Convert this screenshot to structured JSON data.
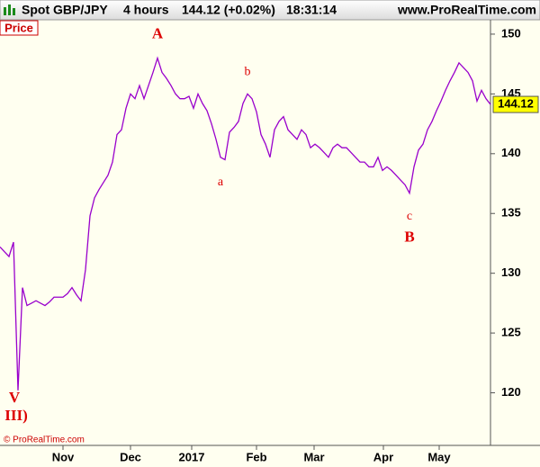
{
  "header": {
    "instrument": "Spot GBP/JPY",
    "timeframe": "4 hours",
    "quote": "144.12 (+0.02%)",
    "time": "18:31:14",
    "site": "www.ProRealTime.com"
  },
  "chart_data": {
    "type": "line",
    "label": "Price",
    "copyright": "© ProRealTime.com",
    "last_price": 144.12,
    "series": [
      {
        "name": "Price",
        "color": "#9900cc",
        "values": [
          132.2,
          131.8,
          131.4,
          132.6,
          120.2,
          128.8,
          127.3,
          127.5,
          127.7,
          127.5,
          127.3,
          127.6,
          128.0,
          128.0,
          128.0,
          128.3,
          128.8,
          128.2,
          127.7,
          130.3,
          134.8,
          136.3,
          137.0,
          137.6,
          138.2,
          139.3,
          141.6,
          142.0,
          143.8,
          145.0,
          144.6,
          145.7,
          144.6,
          145.7,
          146.8,
          148.0,
          146.8,
          146.3,
          145.7,
          145.0,
          144.6,
          144.6,
          144.8,
          143.8,
          145.0,
          144.2,
          143.6,
          142.5,
          141.2,
          139.7,
          139.5,
          141.8,
          142.2,
          142.7,
          144.2,
          145.0,
          144.6,
          143.5,
          141.6,
          140.8,
          139.7,
          142.0,
          142.7,
          143.1,
          142.0,
          141.6,
          141.2,
          142.0,
          141.6,
          140.5,
          140.8,
          140.5,
          140.1,
          139.7,
          140.5,
          140.8,
          140.5,
          140.5,
          140.1,
          139.7,
          139.3,
          139.3,
          138.9,
          138.9,
          139.7,
          138.6,
          138.9,
          138.6,
          138.2,
          137.8,
          137.4,
          136.7,
          138.9,
          140.3,
          140.8,
          142.0,
          142.7,
          143.6,
          144.4,
          145.3,
          146.1,
          146.8,
          147.6,
          147.2,
          146.8,
          146.1,
          144.4,
          145.3,
          144.6,
          144.12
        ]
      }
    ],
    "annotations": [
      {
        "text": "V",
        "color": "#dd0000",
        "index": 4
      },
      {
        "text": "III)",
        "color": "#dd0000",
        "index": 4
      },
      {
        "text": "A",
        "color": "#dd0000",
        "index": 35
      },
      {
        "text": "a",
        "color": "#dd0000",
        "index": 49
      },
      {
        "text": "b",
        "color": "#dd0000",
        "index": 55
      },
      {
        "text": "c",
        "color": "#dd0000",
        "index": 91
      },
      {
        "text": "B",
        "color": "#dd0000",
        "index": 91
      }
    ],
    "xlim": [
      0,
      109
    ],
    "xticks": [
      {
        "value": 14,
        "label": "Nov"
      },
      {
        "value": 29,
        "label": "Dec"
      },
      {
        "value": 42.6,
        "label": "2017"
      },
      {
        "value": 57,
        "label": "Feb"
      },
      {
        "value": 69.8,
        "label": "Mar"
      },
      {
        "value": 85.2,
        "label": "Apr"
      },
      {
        "value": 97.6,
        "label": "May"
      }
    ],
    "ylim": [
      115.6,
      151.2
    ],
    "yticks": [
      120,
      125,
      130,
      135,
      140,
      145,
      150
    ]
  }
}
